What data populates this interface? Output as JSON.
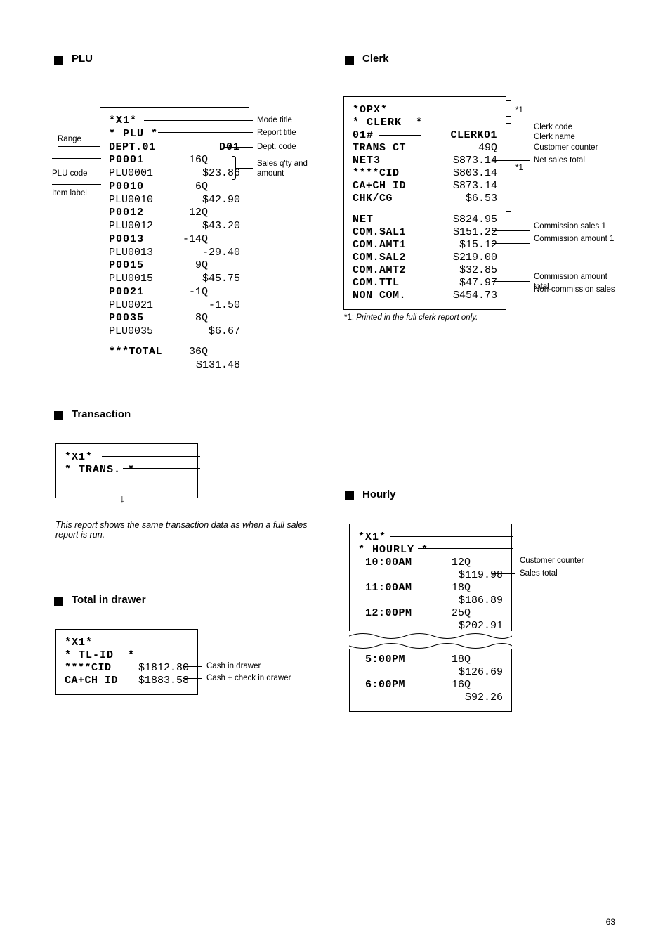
{
  "page_number": "63",
  "plu": {
    "heading_marker": "■",
    "heading": "PLU",
    "mode": "*X1*",
    "title": "* PLU *",
    "dept_label": "DEPT.01",
    "dept_code": "D01",
    "rows": [
      {
        "code": "P0001",
        "qty": "16Q"
      },
      {
        "name": "PLU0001",
        "amt": "$23.86"
      },
      {
        "code": "P0010",
        "qty": "6Q"
      },
      {
        "name": "PLU0010",
        "amt": "$42.90"
      },
      {
        "code": "P0012",
        "qty": "12Q"
      },
      {
        "name": "PLU0012",
        "amt": "$43.20"
      },
      {
        "code": "P0013",
        "qty": "-14Q"
      },
      {
        "name": "PLU0013",
        "amt": "-29.40"
      },
      {
        "code": "P0015",
        "qty": "9Q"
      },
      {
        "name": "PLU0015",
        "amt": "$45.75"
      },
      {
        "code": "P0021",
        "qty": "-1Q"
      },
      {
        "name": "PLU0021",
        "amt": "-1.50"
      },
      {
        "code": "P0035",
        "qty": "8Q"
      },
      {
        "name": "PLU0035",
        "amt": "$6.67"
      }
    ],
    "total_label": "***TOTAL",
    "total_qty": "36Q",
    "total_amt": "$131.48",
    "callouts": {
      "mode_title": "Mode title",
      "report_title": "Report title",
      "range": "Range",
      "item_label": "Item label",
      "dept_code": "Dept. code",
      "plu_code": "PLU code",
      "sales_qty_amt": "Sales q'ty and amount"
    }
  },
  "clerk": {
    "heading": "Clerk",
    "mode": "*OPX*",
    "title": "* CLERK  *",
    "clerk_code": "01#",
    "clerk_name": "CLERK01",
    "rows1": [
      {
        "l": "TRANS CT",
        "r": "49Q"
      },
      {
        "l": "NET3",
        "r": "$873.14",
        "b": true
      },
      {
        "l": "****CID",
        "r": "$803.14"
      },
      {
        "l": "CA+CH ID",
        "r": "$873.14"
      },
      {
        "l": "CHK/CG",
        "r": "$6.53"
      }
    ],
    "rows2": [
      {
        "l": "NET",
        "r": "$824.95",
        "b": true
      },
      {
        "l": "COM.SAL1",
        "r": "$151.22"
      },
      {
        "l": "COM.AMT1",
        "r": "$15.12"
      },
      {
        "l": "COM.SAL2",
        "r": "$219.00"
      },
      {
        "l": "COM.AMT2",
        "r": "$32.85"
      },
      {
        "l": "COM.TTL",
        "r": "$47.97"
      },
      {
        "l": "NON COM.",
        "r": "$454.73"
      }
    ],
    "asterisk": "*1",
    "footnote_marker": "*1:",
    "footnote_text": "Printed in the full clerk report only.",
    "callouts": {
      "clerk_code": "Clerk code",
      "clerk_name": "Clerk name",
      "customer_counter": "Customer counter",
      "net_sales_total": "Net sales total",
      "commission_sales1": "Commission sales 1",
      "commission_amount1": "Commission amount 1",
      "commission_amount_total": "Commission amount total",
      "non_commission_sales": "Non-commission sales"
    }
  },
  "trans": {
    "heading": "Transaction",
    "mode": "*X1*",
    "title": "* TRANS. *",
    "note": "This report shows the same transaction data as when a full sales report is run."
  },
  "tlid": {
    "heading": "Total in drawer",
    "mode": "*X1*",
    "title": "* TL-ID  *",
    "rows": [
      {
        "l": "****CID",
        "r": "$1812.80"
      },
      {
        "l": "CA+CH ID",
        "r": "$1883.58"
      }
    ],
    "callouts": {
      "cash_in_drawer": "Cash in drawer",
      "cash_check_in_drawer": "Cash + check in drawer"
    }
  },
  "hourly": {
    "heading": "Hourly",
    "mode": "*X1*",
    "title": "* HOURLY *",
    "rows_top": [
      {
        "t": "10:00AM",
        "q": "12Q",
        "a": "$119.98"
      },
      {
        "t": "11:00AM",
        "q": "18Q",
        "a": "$186.89"
      },
      {
        "t": "12:00PM",
        "q": "25Q",
        "a": "$202.91"
      }
    ],
    "rows_bottom": [
      {
        "t": "5:00PM",
        "q": "18Q",
        "a": "$126.69"
      },
      {
        "t": "6:00PM",
        "q": "16Q",
        "a": "$92.26"
      }
    ],
    "callouts": {
      "customer_counter": "Customer counter",
      "sales_total": "Sales total"
    }
  }
}
